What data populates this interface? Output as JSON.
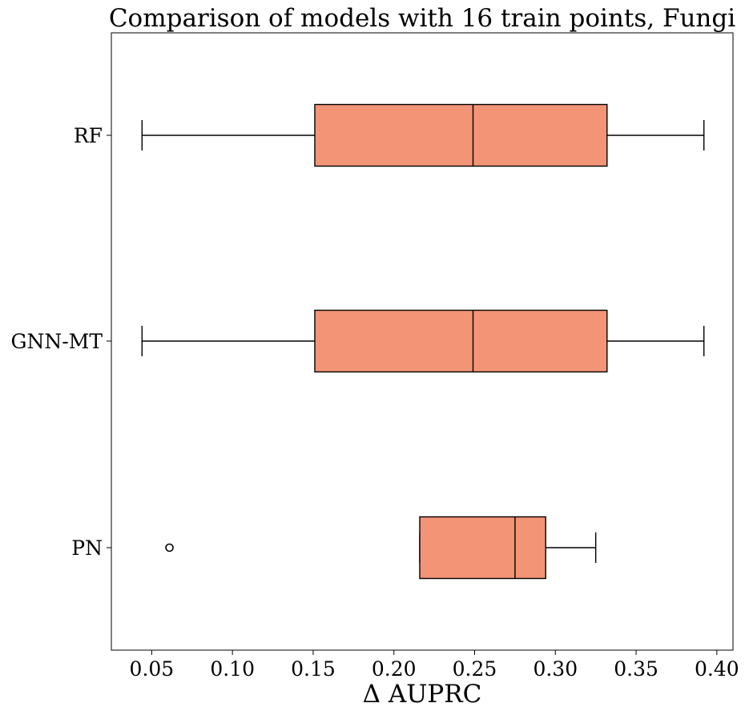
{
  "chart_data": {
    "type": "boxplot",
    "orientation": "horizontal",
    "title": "Comparison of models with 16 train points, Fungi",
    "xlabel": "Δ AUPRC",
    "ylabel": "",
    "xlim": [
      0.025,
      0.41
    ],
    "xticks": [
      0.05,
      0.1,
      0.15,
      0.2,
      0.25,
      0.3,
      0.35,
      0.4
    ],
    "xtick_labels": [
      "0.05",
      "0.10",
      "0.15",
      "0.20",
      "0.25",
      "0.30",
      "0.35",
      "0.40"
    ],
    "grid": false,
    "box_color": "#f29476",
    "edge_color": "#000000",
    "categories": [
      "RF",
      "GNN-MT",
      "PN"
    ],
    "boxes": [
      {
        "label": "RF",
        "whisker_low": 0.044,
        "q1": 0.151,
        "median": 0.249,
        "q3": 0.332,
        "whisker_high": 0.392,
        "outliers": []
      },
      {
        "label": "GNN-MT",
        "whisker_low": 0.044,
        "q1": 0.151,
        "median": 0.249,
        "q3": 0.332,
        "whisker_high": 0.392,
        "outliers": []
      },
      {
        "label": "PN",
        "whisker_low": 0.216,
        "q1": 0.216,
        "median": 0.275,
        "q3": 0.294,
        "whisker_high": 0.325,
        "outliers": [
          0.061
        ]
      }
    ]
  }
}
